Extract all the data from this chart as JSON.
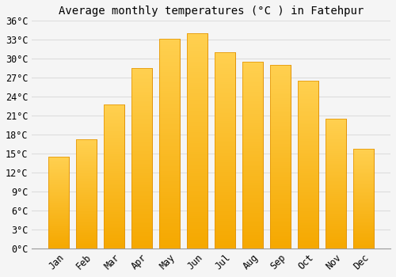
{
  "title": "Average monthly temperatures (°C ) in Fatehpur",
  "months": [
    "Jan",
    "Feb",
    "Mar",
    "Apr",
    "May",
    "Jun",
    "Jul",
    "Aug",
    "Sep",
    "Oct",
    "Nov",
    "Dec"
  ],
  "values": [
    14.5,
    17.2,
    22.8,
    28.5,
    33.2,
    34.0,
    31.0,
    29.5,
    29.0,
    26.5,
    20.5,
    15.8
  ],
  "bar_color_top": "#FFC533",
  "bar_color_bottom": "#F5A800",
  "bar_edge_color": "#E09000",
  "ylim": [
    0,
    36
  ],
  "ytick_step": 3,
  "background_color": "#f5f5f5",
  "grid_color": "#dddddd",
  "title_fontsize": 10,
  "tick_fontsize": 8.5,
  "bar_width": 0.75
}
